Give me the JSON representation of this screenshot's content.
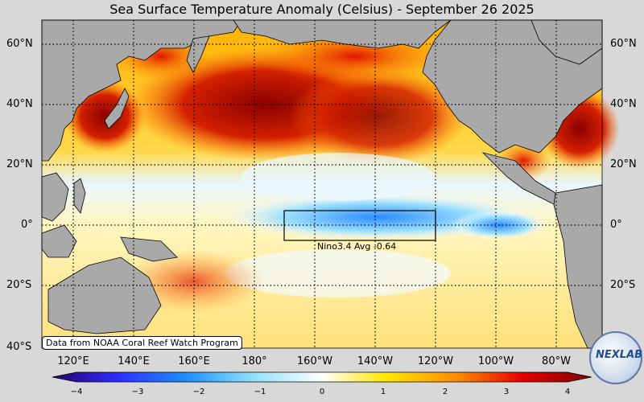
{
  "title": "Sea Surface Temperature Anomaly (Celsius) - September 26 2025",
  "latitude_labels": {
    "left": [
      "60°N",
      "40°N",
      "20°N",
      "0°",
      "20°S",
      "40°S"
    ],
    "right": [
      "60°N",
      "40°N",
      "20°N",
      "0°",
      "20°S"
    ]
  },
  "longitude_labels": [
    "120°E",
    "140°E",
    "160°E",
    "180°",
    "160°W",
    "140°W",
    "120°W",
    "100°W",
    "80°W"
  ],
  "nino_box": {
    "label": "Nino3.4 Avg  -0.64",
    "avg": -0.64
  },
  "credit": "Data from NOAA Coral Reef Watch Program",
  "colorbar": {
    "ticks": [
      "−4",
      "−3",
      "−2",
      "−1",
      "0",
      "1",
      "2",
      "3",
      "4"
    ],
    "min": -4,
    "max": 4
  },
  "logo_text": "NEXLAB",
  "colors": {
    "land": "#a9a9a9",
    "background": "#d8d8d8"
  }
}
